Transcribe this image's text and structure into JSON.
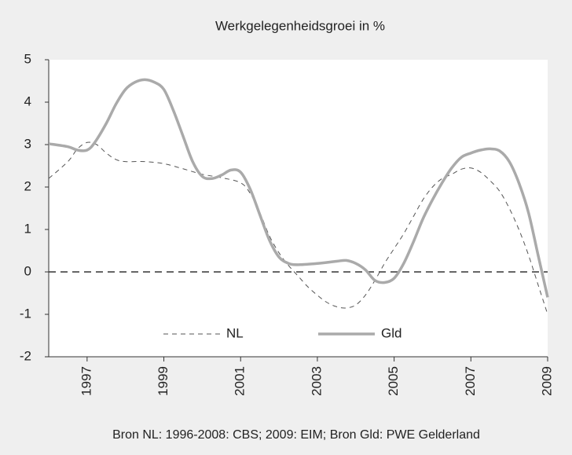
{
  "chart_data": {
    "type": "line",
    "title": "Werkgelegenheidsgroei in %",
    "source": "Bron NL: 1996-2008: CBS; 2009: EIM; Bron Gld: PWE Gelderland",
    "xlim": [
      1996,
      2009
    ],
    "xticks": [
      1997,
      1999,
      2001,
      2003,
      2005,
      2007,
      2009
    ],
    "ylim": [
      -2,
      5
    ],
    "yticks": [
      -2,
      -1,
      0,
      1,
      2,
      3,
      4,
      5
    ],
    "hline": 0,
    "legend": "bottom",
    "series": [
      {
        "name": "NL",
        "color": "#555555",
        "style": "dashed",
        "x": [
          1996,
          1996.5,
          1996.75,
          1997,
          1997.25,
          1997.5,
          1997.75,
          1998,
          1998.5,
          1999,
          1999.5,
          2000,
          2000.5,
          2001,
          2001.25,
          2001.5,
          2001.75,
          2002,
          2002.25,
          2002.5,
          2002.75,
          2003,
          2003.25,
          2003.5,
          2003.75,
          2004,
          2004.25,
          2004.5,
          2004.75,
          2005,
          2005.25,
          2005.5,
          2005.75,
          2006,
          2006.25,
          2006.5,
          2006.75,
          2007,
          2007.25,
          2007.5,
          2007.75,
          2008,
          2008.25,
          2008.5,
          2008.75,
          2009
        ],
        "values": [
          2.2,
          2.6,
          2.9,
          3.05,
          3.0,
          2.8,
          2.65,
          2.6,
          2.6,
          2.55,
          2.43,
          2.3,
          2.22,
          2.1,
          1.85,
          1.4,
          0.85,
          0.45,
          0.15,
          -0.1,
          -0.35,
          -0.55,
          -0.72,
          -0.82,
          -0.85,
          -0.78,
          -0.55,
          -0.2,
          0.2,
          0.55,
          0.9,
          1.3,
          1.7,
          2.0,
          2.2,
          2.3,
          2.42,
          2.45,
          2.35,
          2.15,
          1.9,
          1.5,
          1.0,
          0.4,
          -0.3,
          -1.0
        ]
      },
      {
        "name": "Gld",
        "color": "#aaaaaa",
        "style": "solid",
        "x": [
          1996,
          1996.5,
          1996.75,
          1997,
          1997.2,
          1997.5,
          1997.75,
          1998,
          1998.25,
          1998.5,
          1998.75,
          1999,
          1999.25,
          1999.5,
          1999.75,
          2000,
          2000.25,
          2000.5,
          2000.75,
          2001,
          2001.25,
          2001.5,
          2001.75,
          2002,
          2002.25,
          2002.5,
          2003,
          2003.5,
          2003.75,
          2004,
          2004.25,
          2004.5,
          2004.75,
          2005,
          2005.25,
          2005.5,
          2005.75,
          2006,
          2006.25,
          2006.5,
          2006.75,
          2007,
          2007.25,
          2007.5,
          2007.75,
          2008,
          2008.25,
          2008.5,
          2008.75,
          2009
        ],
        "values": [
          3.02,
          2.95,
          2.87,
          2.87,
          3.05,
          3.5,
          3.95,
          4.3,
          4.47,
          4.53,
          4.47,
          4.3,
          3.8,
          3.2,
          2.6,
          2.25,
          2.2,
          2.28,
          2.4,
          2.35,
          1.95,
          1.35,
          0.75,
          0.35,
          0.2,
          0.17,
          0.2,
          0.25,
          0.27,
          0.2,
          0.05,
          -0.2,
          -0.25,
          -0.15,
          0.2,
          0.7,
          1.25,
          1.7,
          2.1,
          2.45,
          2.7,
          2.8,
          2.87,
          2.9,
          2.85,
          2.6,
          2.1,
          1.4,
          0.4,
          -0.6
        ]
      }
    ]
  }
}
